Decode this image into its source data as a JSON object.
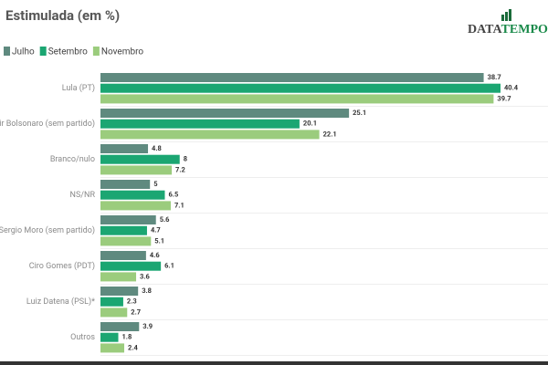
{
  "chart_data": {
    "type": "bar",
    "orientation": "horizontal",
    "title": "Estimulada (em %)",
    "logo": [
      "DATA",
      "TEMPO"
    ],
    "categories": [
      "Lula (PT)",
      "Jair Bolsonaro (sem partido)",
      "Branco/nulo",
      "NS/NR",
      "Sergio Moro (sem partido)",
      "Ciro Gomes (PDT)",
      "Luiz Datena (PSL)*",
      "Outros"
    ],
    "series": [
      {
        "name": "Julho",
        "color": "#5f8a7f",
        "values": [
          38.7,
          25.1,
          4.8,
          5,
          5.6,
          4.6,
          3.8,
          3.9
        ]
      },
      {
        "name": "Setembro",
        "color": "#1ba672",
        "values": [
          40.4,
          20.1,
          8,
          6.5,
          4.7,
          6.1,
          2.3,
          1.8
        ]
      },
      {
        "name": "Novembro",
        "color": "#9bcc7d",
        "values": [
          39.7,
          22.1,
          7.2,
          7.1,
          5.1,
          3.6,
          2.7,
          2.4
        ]
      }
    ],
    "legend": "top-left",
    "data_labels": true
  }
}
